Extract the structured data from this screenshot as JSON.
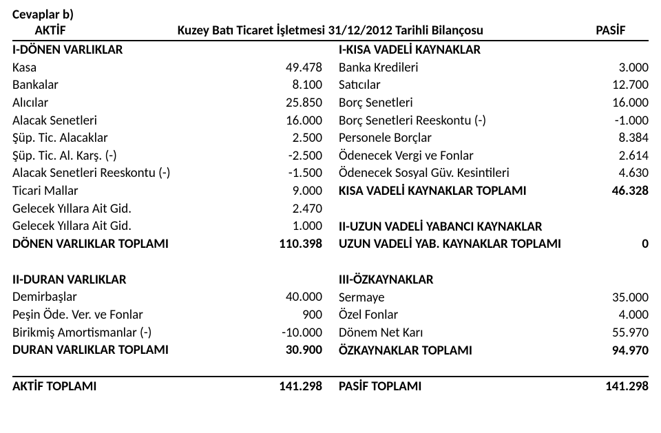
{
  "doc_title": "Cevaplar b)",
  "header": {
    "left": "AKTİF",
    "center": "Kuzey Batı Ticaret İşletmesi 31/12/2012 Tarihli Bilançosu",
    "right": "PASİF"
  },
  "aktif": {
    "section1_title": "I-DÖNEN VARLIKLAR",
    "rows1": [
      {
        "label": "Kasa",
        "val": "49.478"
      },
      {
        "label": "Bankalar",
        "val": "8.100"
      },
      {
        "label": "Alıcılar",
        "val": "25.850"
      },
      {
        "label": "Alacak Senetleri",
        "val": "16.000"
      },
      {
        "label": "Şüp. Tic. Alacaklar",
        "val": "2.500"
      },
      {
        "label": "Şüp. Tic. Al. Karş. (-)",
        "val": "-2.500"
      },
      {
        "label": "Alacak Senetleri Reeskontu (-)",
        "val": "-1.500"
      },
      {
        "label": "Ticari Mallar",
        "val": "9.000"
      },
      {
        "label": "Gelecek Yıllara Ait Gid.",
        "val": "2.470"
      },
      {
        "label": "Gelecek Yıllara Ait Gid.",
        "val": "1.000"
      }
    ],
    "total1": {
      "label": "DÖNEN VARLIKLAR TOPLAMI",
      "val": "110.398"
    },
    "section2_title": "II-DURAN VARLIKLAR",
    "rows2": [
      {
        "label": "Demirbaşlar",
        "val": "40.000"
      },
      {
        "label": "Peşin Öde. Ver. ve Fonlar",
        "val": "900"
      },
      {
        "label": "Birikmiş Amortismanlar (-)",
        "val": "-10.000"
      }
    ],
    "total2": {
      "label": "DURAN VARLIKLAR TOPLAMI",
      "val": "30.900"
    }
  },
  "pasif": {
    "section1_title": "I-KISA VADELİ KAYNAKLAR",
    "rows1": [
      {
        "label": "Banka Kredileri",
        "val": "3.000"
      },
      {
        "label": "Satıcılar",
        "val": "12.700"
      },
      {
        "label": "Borç Senetleri",
        "val": "16.000"
      },
      {
        "label": "Borç Senetleri Reeskontu (-)",
        "val": "-1.000"
      },
      {
        "label": "Personele Borçlar",
        "val": "8.384"
      },
      {
        "label": "Ödenecek Vergi ve Fonlar",
        "val": "2.614"
      },
      {
        "label": "Ödenecek Sosyal Güv. Kesintileri",
        "val": "4.630"
      }
    ],
    "total1": {
      "label": "KISA VADELİ KAYNAKLAR TOPLAMI",
      "val": "46.328"
    },
    "section2_title": "II-UZUN VADELİ YABANCI KAYNAKLAR",
    "total2": {
      "label": "UZUN VADELİ YAB. KAYNAKLAR TOPLAMI",
      "val": "0"
    },
    "section3_title": "III-ÖZKAYNAKLAR",
    "rows3": [
      {
        "label": "Sermaye",
        "val": "35.000"
      },
      {
        "label": "Özel Fonlar",
        "val": "4.000"
      },
      {
        "label": "Dönem Net Karı",
        "val": "55.970"
      }
    ],
    "total3": {
      "label": "ÖZKAYNAKLAR TOPLAMI",
      "val": "94.970"
    }
  },
  "footer": {
    "left": {
      "label": "AKTİF TOPLAMI",
      "val": "141.298"
    },
    "right": {
      "label": "PASİF TOPLAMI",
      "val": "141.298"
    }
  }
}
